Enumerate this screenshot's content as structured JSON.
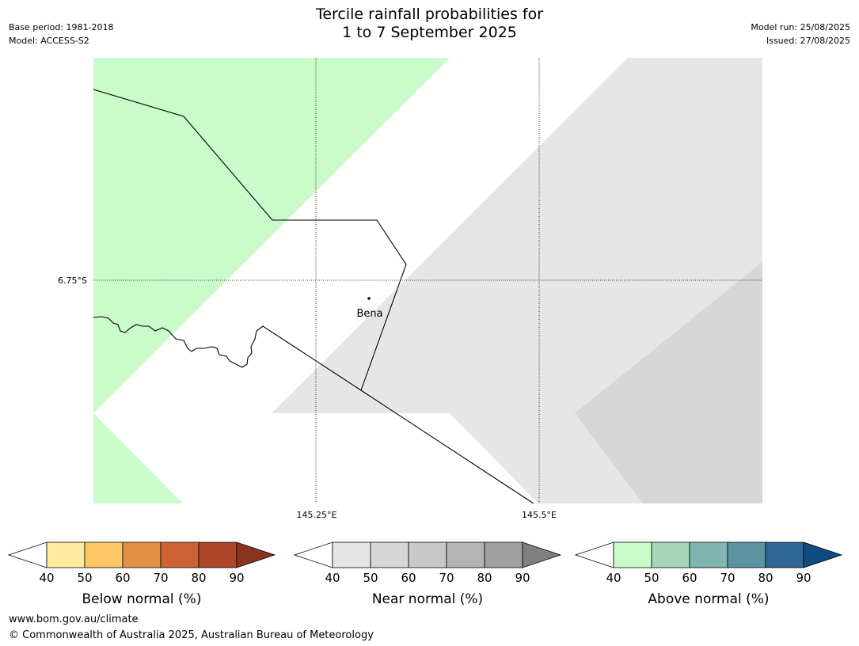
{
  "header": {
    "title_line1": "Tercile rainfall probabilities for",
    "title_line2": "1 to 7 September 2025",
    "base_period": "Base period: 1981-2018",
    "model": "Model: ACCESS-S2",
    "model_run": "Model run: 25/08/2025",
    "issued": "Issued: 27/08/2025"
  },
  "map": {
    "latitude_label": "6.75°S",
    "longitude_labels": [
      "145.25°E",
      "145.5°E"
    ],
    "place_label": "Bena",
    "colors": {
      "above_40_50": "#c9fcca",
      "near_40_50": "#e6e6e6",
      "near_50_60": "#d6d6d6"
    }
  },
  "colorbars": [
    {
      "label": "Below normal (%)",
      "ticks": [
        "40",
        "50",
        "60",
        "70",
        "80",
        "90"
      ],
      "colors": [
        "#feeb9e",
        "#fec866",
        "#e29143",
        "#cd6334",
        "#ad4627",
        "#8b3420"
      ]
    },
    {
      "label": "Near normal (%)",
      "ticks": [
        "40",
        "50",
        "60",
        "70",
        "80",
        "90"
      ],
      "colors": [
        "#e6e6e6",
        "#d6d6d6",
        "#c8c8c8",
        "#b4b4b4",
        "#a0a0a0",
        "#808080"
      ]
    },
    {
      "label": "Above normal (%)",
      "ticks": [
        "40",
        "50",
        "60",
        "70",
        "80",
        "90"
      ],
      "colors": [
        "#c9fcca",
        "#a5d8bb",
        "#80b5b1",
        "#5b93a1",
        "#306696",
        "#104b80"
      ]
    }
  ],
  "footer": {
    "url": "www.bom.gov.au/climate",
    "copyright": "© Commonwealth of Australia 2025, Australian Bureau of Meteorology"
  }
}
